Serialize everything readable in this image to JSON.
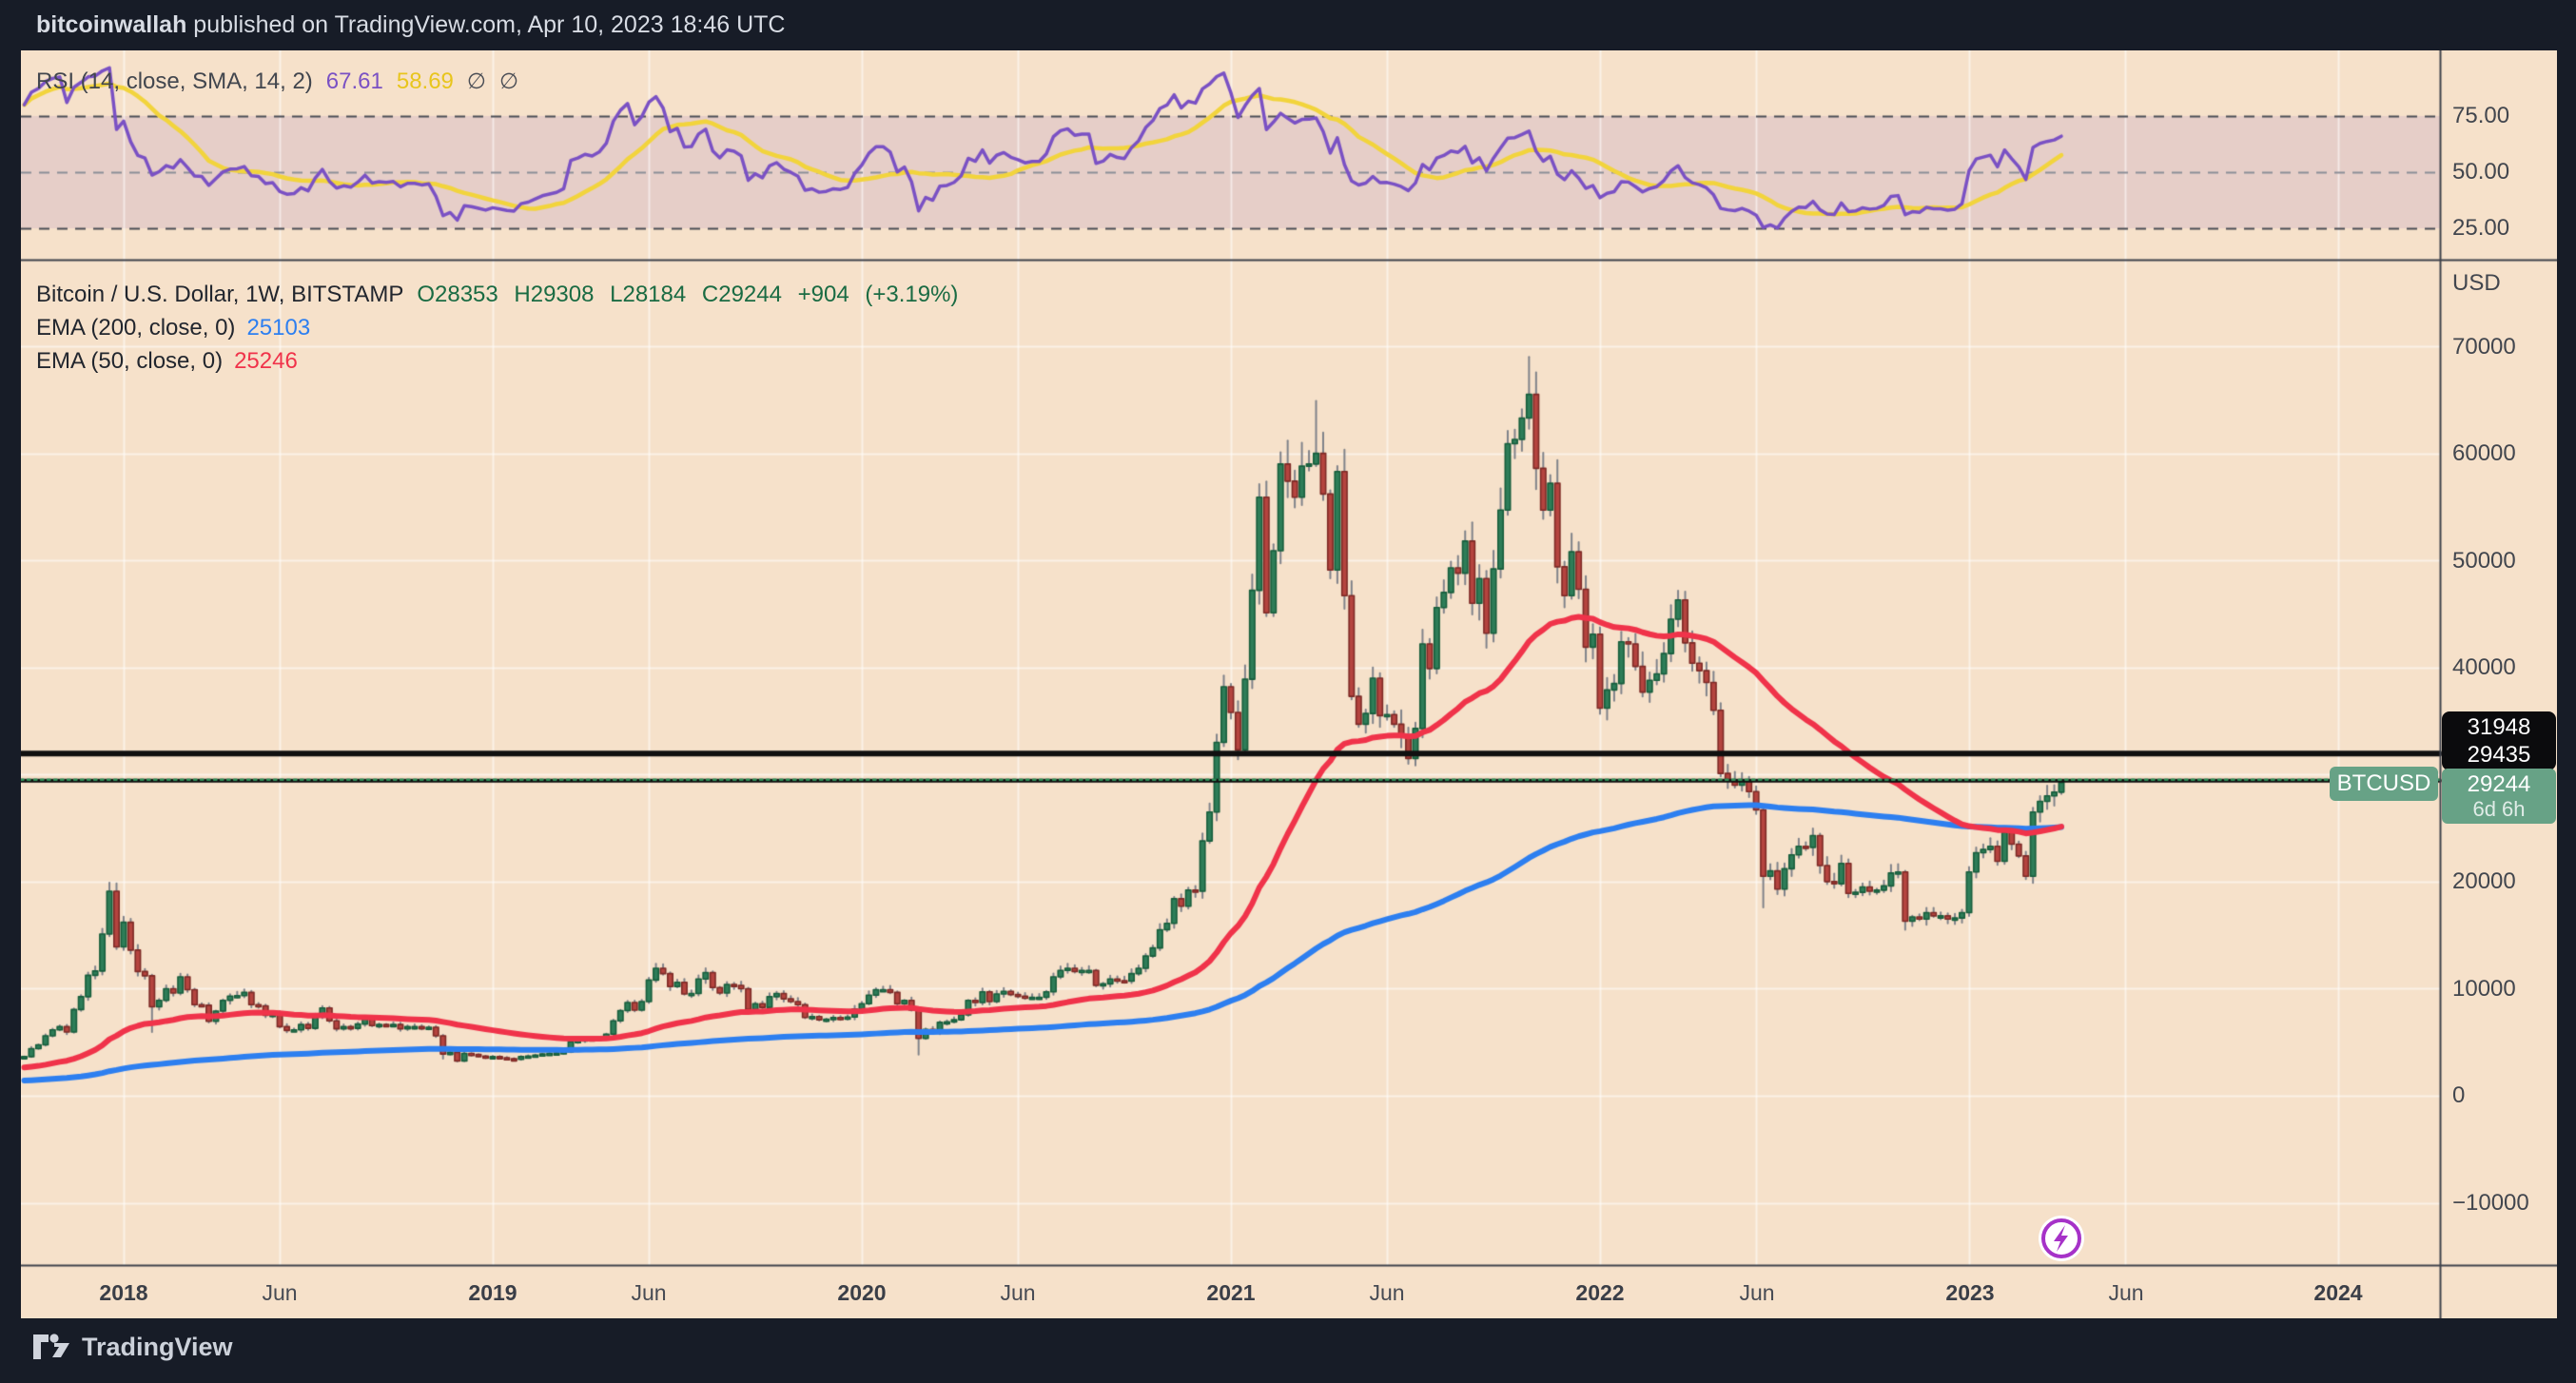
{
  "header": {
    "username": "bitcoinwallah",
    "suffix": " published on TradingView.com, Apr 10, 2023 18:46 UTC"
  },
  "rsi_pane": {
    "label": "RSI (14, close, SMA, 14, 2)",
    "value_rsi": "67.61",
    "value_sma": "58.69",
    "flag1": "∅",
    "flag2": "∅",
    "axis": [
      "75.00",
      "50.00",
      "25.00"
    ]
  },
  "main_pane": {
    "symbol_label": "Bitcoin / U.S. Dollar, 1W, BITSTAMP",
    "ohlc_text": "O28353 H29308 L28184 C29244 +904 (+3.19%)",
    "ema200_label": "EMA (200, close, 0)",
    "ema200_value": "25103",
    "ema50_label": "EMA (50, close, 0)",
    "ema50_value": "25246"
  },
  "price_axis": {
    "currency": "USD",
    "ticks": [
      "70000",
      "60000",
      "50000",
      "40000",
      "20000",
      "10000",
      "0",
      "−10000"
    ]
  },
  "price_tags": {
    "line_upper": "31948",
    "line_lower": "29435",
    "last_price": "29244",
    "countdown": "6d 6h",
    "symbol": "BTCUSD"
  },
  "time_axis": [
    "2018",
    "Jun",
    "2019",
    "Jun",
    "2020",
    "Jun",
    "2021",
    "Jun",
    "2022",
    "Jun",
    "2023",
    "Jun",
    "2024"
  ],
  "footer": {
    "brand": "TradingView"
  },
  "colors": {
    "background": "#f6e1ca",
    "frame_dark": "#171c27",
    "grid": "rgba(255,255,255,0.55)",
    "band": "rgba(126,87,194,0.13)",
    "up_fill": "#2e7d58",
    "up_stroke": "#175e3c",
    "down_fill": "#b5443f",
    "down_stroke": "#7e2a26",
    "wick": "#80838a",
    "ema50": "#f0334a",
    "ema200": "#2d7ff0",
    "rsi_line": "#7a51c4",
    "rsi_sma_line": "#f2d43c",
    "dashed_major": "#4a4d55",
    "dashed_mid": "#8b8e97",
    "separator": "#3f434c",
    "ray": "#101010",
    "current_price_line": "#2f8f58",
    "tag_black": "#0b0b0d",
    "tag_green": "#67a286",
    "axis_text": "#42464e"
  },
  "chart_data": {
    "type": "candlestick",
    "title": "Bitcoin / U.S. Dollar, 1W, BITSTAMP",
    "interval": "1W",
    "start_week": "2017-09-25",
    "ylabel": "USD",
    "price_axis_ticks": [
      70000,
      60000,
      50000,
      40000,
      30000,
      20000,
      10000,
      0,
      -10000
    ],
    "rsi_axis_ticks": [
      75,
      50,
      25
    ],
    "horizontal_rays": [
      31948,
      29435
    ],
    "current_price": 29244,
    "last_bar": {
      "open": 28353,
      "high": 29308,
      "low": 28184,
      "close": 29244,
      "change": "+904 (+3.19%)"
    },
    "first_open": 3500,
    "weekly_closes": [
      3650,
      4400,
      4750,
      5600,
      6150,
      6450,
      5950,
      8050,
      9250,
      11250,
      11650,
      15100,
      19100,
      13900,
      16200,
      13600,
      11600,
      11200,
      8300,
      8900,
      10000,
      9600,
      11100,
      9900,
      8500,
      8450,
      6950,
      7900,
      8900,
      9300,
      9350,
      9650,
      8500,
      8400,
      7500,
      7600,
      6450,
      6100,
      6150,
      6650,
      6300,
      7400,
      8200,
      7000,
      6250,
      6450,
      6300,
      6700,
      7250,
      6550,
      6650,
      6600,
      6650,
      6250,
      6450,
      6450,
      6350,
      6400,
      5600,
      3900,
      4050,
      3250,
      3950,
      3850,
      3700,
      3550,
      3650,
      3550,
      3450,
      3400,
      3650,
      3700,
      3800,
      3900,
      3950,
      4000,
      4100,
      5050,
      5150,
      5300,
      5250,
      5400,
      5750,
      7000,
      7950,
      8700,
      8000,
      8800,
      10800,
      11900,
      11400,
      10200,
      10600,
      9500,
      9550,
      10900,
      11500,
      10100,
      9600,
      10400,
      10300,
      10000,
      8050,
      8600,
      8250,
      9250,
      9550,
      9050,
      8800,
      8500,
      7300,
      7400,
      7100,
      7150,
      7300,
      7250,
      7350,
      8100,
      8600,
      9400,
      9900,
      9900,
      9650,
      8600,
      8900,
      8000,
      5350,
      6200,
      5900,
      6850,
      6900,
      7100,
      7550,
      8900,
      8700,
      9700,
      8800,
      9500,
      9750,
      9450,
      9300,
      9100,
      9200,
      9200,
      9700,
      11100,
      11700,
      11900,
      11600,
      11700,
      11700,
      10300,
      10450,
      10900,
      10750,
      10700,
      11400,
      11900,
      13050,
      13800,
      15500,
      16100,
      18400,
      17700,
      19200,
      19100,
      23800,
      26500,
      33000,
      38200,
      35800,
      32300,
      38900,
      47200,
      55900,
      45100,
      50900,
      59000,
      57400,
      55900,
      58800,
      59000,
      60000,
      56200,
      49100,
      58300,
      46700,
      37300,
      34700,
      35700,
      39000,
      35500,
      35600,
      34700,
      33500,
      31500,
      34300,
      42200,
      39900,
      45600,
      47000,
      49300,
      48800,
      51800,
      46000,
      48300,
      43200,
      49200,
      54700,
      60900,
      61300,
      63300,
      65500,
      58600,
      54700,
      57200,
      49400,
      46700,
      50800,
      47300,
      41900,
      43100,
      36200,
      37900,
      38500,
      42400,
      42200,
      40100,
      37700,
      38800,
      39400,
      41300,
      44500,
      46300,
      42300,
      40400,
      39700,
      38600,
      36000,
      30100,
      29400,
      29000,
      29500,
      28400,
      26700,
      20500,
      21000,
      19300,
      21200,
      22500,
      23300,
      23200,
      24300,
      21500,
      20000,
      19800,
      21700,
      18900,
      19000,
      19500,
      19100,
      19200,
      19600,
      20800,
      20900,
      16300,
      16700,
      16500,
      17100,
      16800,
      16800,
      16500,
      16600,
      17100,
      20900,
      22700,
      23000,
      23300,
      21900,
      24600,
      23500,
      22400,
      20500,
      26500,
      27500,
      28000,
      28350,
      29244
    ],
    "wick_overrides": {
      "12": [
        19900,
        14900
      ],
      "18": [
        11300,
        5950
      ],
      "59": [
        5680,
        3475
      ],
      "126": [
        8200,
        3850
      ],
      "182": [
        64900,
        58800
      ],
      "212": [
        69000,
        62300
      ],
      "245": [
        26900,
        17600
      ],
      "265": [
        21000,
        15500
      ],
      "287": [
        29308,
        28184
      ]
    },
    "indicators": {
      "rsi": {
        "period": 14,
        "seed_avg_gain": 120,
        "seed_avg_loss": 30,
        "current": 67.61
      },
      "rsi_sma": {
        "period": 14,
        "current": 58.69
      },
      "ema50": {
        "period": 50,
        "seed": 2600,
        "current": 25246
      },
      "ema200": {
        "period": 200,
        "seed": 1400,
        "current": 25103
      }
    },
    "legend_position": "top-left",
    "grid": true
  }
}
